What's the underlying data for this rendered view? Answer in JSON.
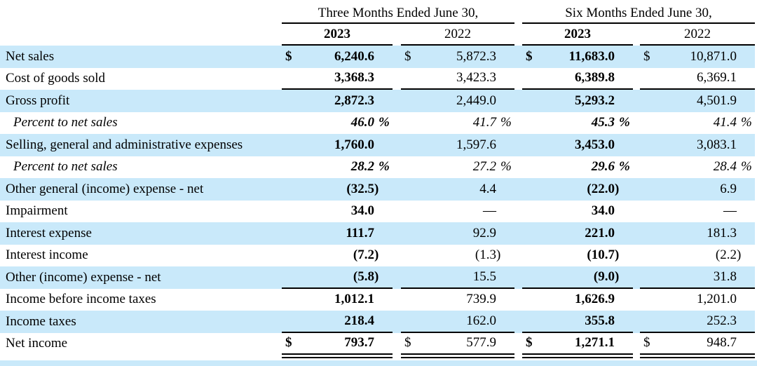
{
  "table": {
    "column_groups": [
      {
        "title": "Three Months Ended June 30,",
        "years": [
          "2023",
          "2022"
        ]
      },
      {
        "title": "Six Months Ended June 30,",
        "years": [
          "2023",
          "2022"
        ]
      }
    ],
    "rows": [
      {
        "label": "Net sales",
        "currency": "$",
        "values": [
          "6,240.6",
          "5,872.3",
          "11,683.0",
          "10,871.0"
        ]
      },
      {
        "label": "Cost of goods sold",
        "values": [
          "3,368.3",
          "3,423.3",
          "6,389.8",
          "6,369.1"
        ],
        "rule_below": "single"
      },
      {
        "label": "Gross profit",
        "values": [
          "2,872.3",
          "2,449.0",
          "5,293.2",
          "4,501.9"
        ]
      },
      {
        "label": "Percent to net sales",
        "style": "percent",
        "values": [
          "46.0 %",
          "41.7 %",
          "45.3 %",
          "41.4 %"
        ]
      },
      {
        "label": "Selling, general and administrative expenses",
        "values": [
          "1,760.0",
          "1,597.6",
          "3,453.0",
          "3,083.1"
        ]
      },
      {
        "label": "Percent to net sales",
        "style": "percent",
        "values": [
          "28.2 %",
          "27.2 %",
          "29.6 %",
          "28.4 %"
        ]
      },
      {
        "label": "Other general (income) expense - net",
        "values": [
          "(32.5)",
          "4.4",
          "(22.0)",
          "6.9"
        ]
      },
      {
        "label": "Impairment",
        "values": [
          "34.0",
          "—",
          "34.0",
          "—"
        ]
      },
      {
        "label": "Interest expense",
        "values": [
          "111.7",
          "92.9",
          "221.0",
          "181.3"
        ]
      },
      {
        "label": "Interest income",
        "values": [
          "(7.2)",
          "(1.3)",
          "(10.7)",
          "(2.2)"
        ]
      },
      {
        "label": "Other (income) expense - net",
        "values": [
          "(5.8)",
          "15.5",
          "(9.0)",
          "31.8"
        ],
        "rule_below": "single"
      },
      {
        "label": "Income before income taxes",
        "values": [
          "1,012.1",
          "739.9",
          "1,626.9",
          "1,201.0"
        ]
      },
      {
        "label": "Income taxes",
        "values": [
          "218.4",
          "162.0",
          "355.8",
          "252.3"
        ],
        "rule_below": "single"
      },
      {
        "label": "Net income",
        "currency": "$",
        "values": [
          "793.7",
          "577.9",
          "1,271.1",
          "948.7"
        ],
        "rule_below": "double"
      }
    ],
    "colors": {
      "stripe": "#c9e9fa",
      "rule": "#000000",
      "text": "#000000"
    }
  }
}
